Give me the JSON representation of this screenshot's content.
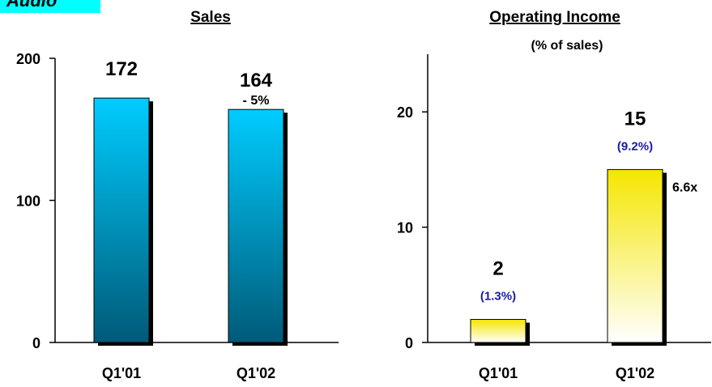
{
  "badge": {
    "label": "Audio",
    "color": "#00ffff"
  },
  "colors": {
    "sales_top": "#00ccff",
    "sales_bottom": "#005a78",
    "income_top": "#f5e600",
    "income_bottom": "#ffffff",
    "pct_text": "#1a1aaa",
    "shadow": "#000000"
  },
  "chart_data": [
    {
      "type": "bar",
      "title": "Sales",
      "subtitle": "",
      "categories": [
        "Q1'01",
        "Q1'02"
      ],
      "values": [
        172,
        164
      ],
      "value_labels": [
        "172",
        "164"
      ],
      "ylim": [
        0,
        200
      ],
      "yticks": [
        "0",
        "100",
        "200"
      ],
      "annotation": "- 5%",
      "grid": false
    },
    {
      "type": "bar",
      "title": "Operating Income",
      "subtitle": "(% of sales)",
      "categories": [
        "Q1'01",
        "Q1'02"
      ],
      "values": [
        2,
        15
      ],
      "value_labels": [
        "2",
        "15"
      ],
      "pct_labels": [
        "(1.3%)",
        "(9.2%)"
      ],
      "ylim": [
        0,
        25
      ],
      "yticks": [
        "0",
        "10",
        "20"
      ],
      "annotation": "6.6x",
      "grid": false
    }
  ]
}
